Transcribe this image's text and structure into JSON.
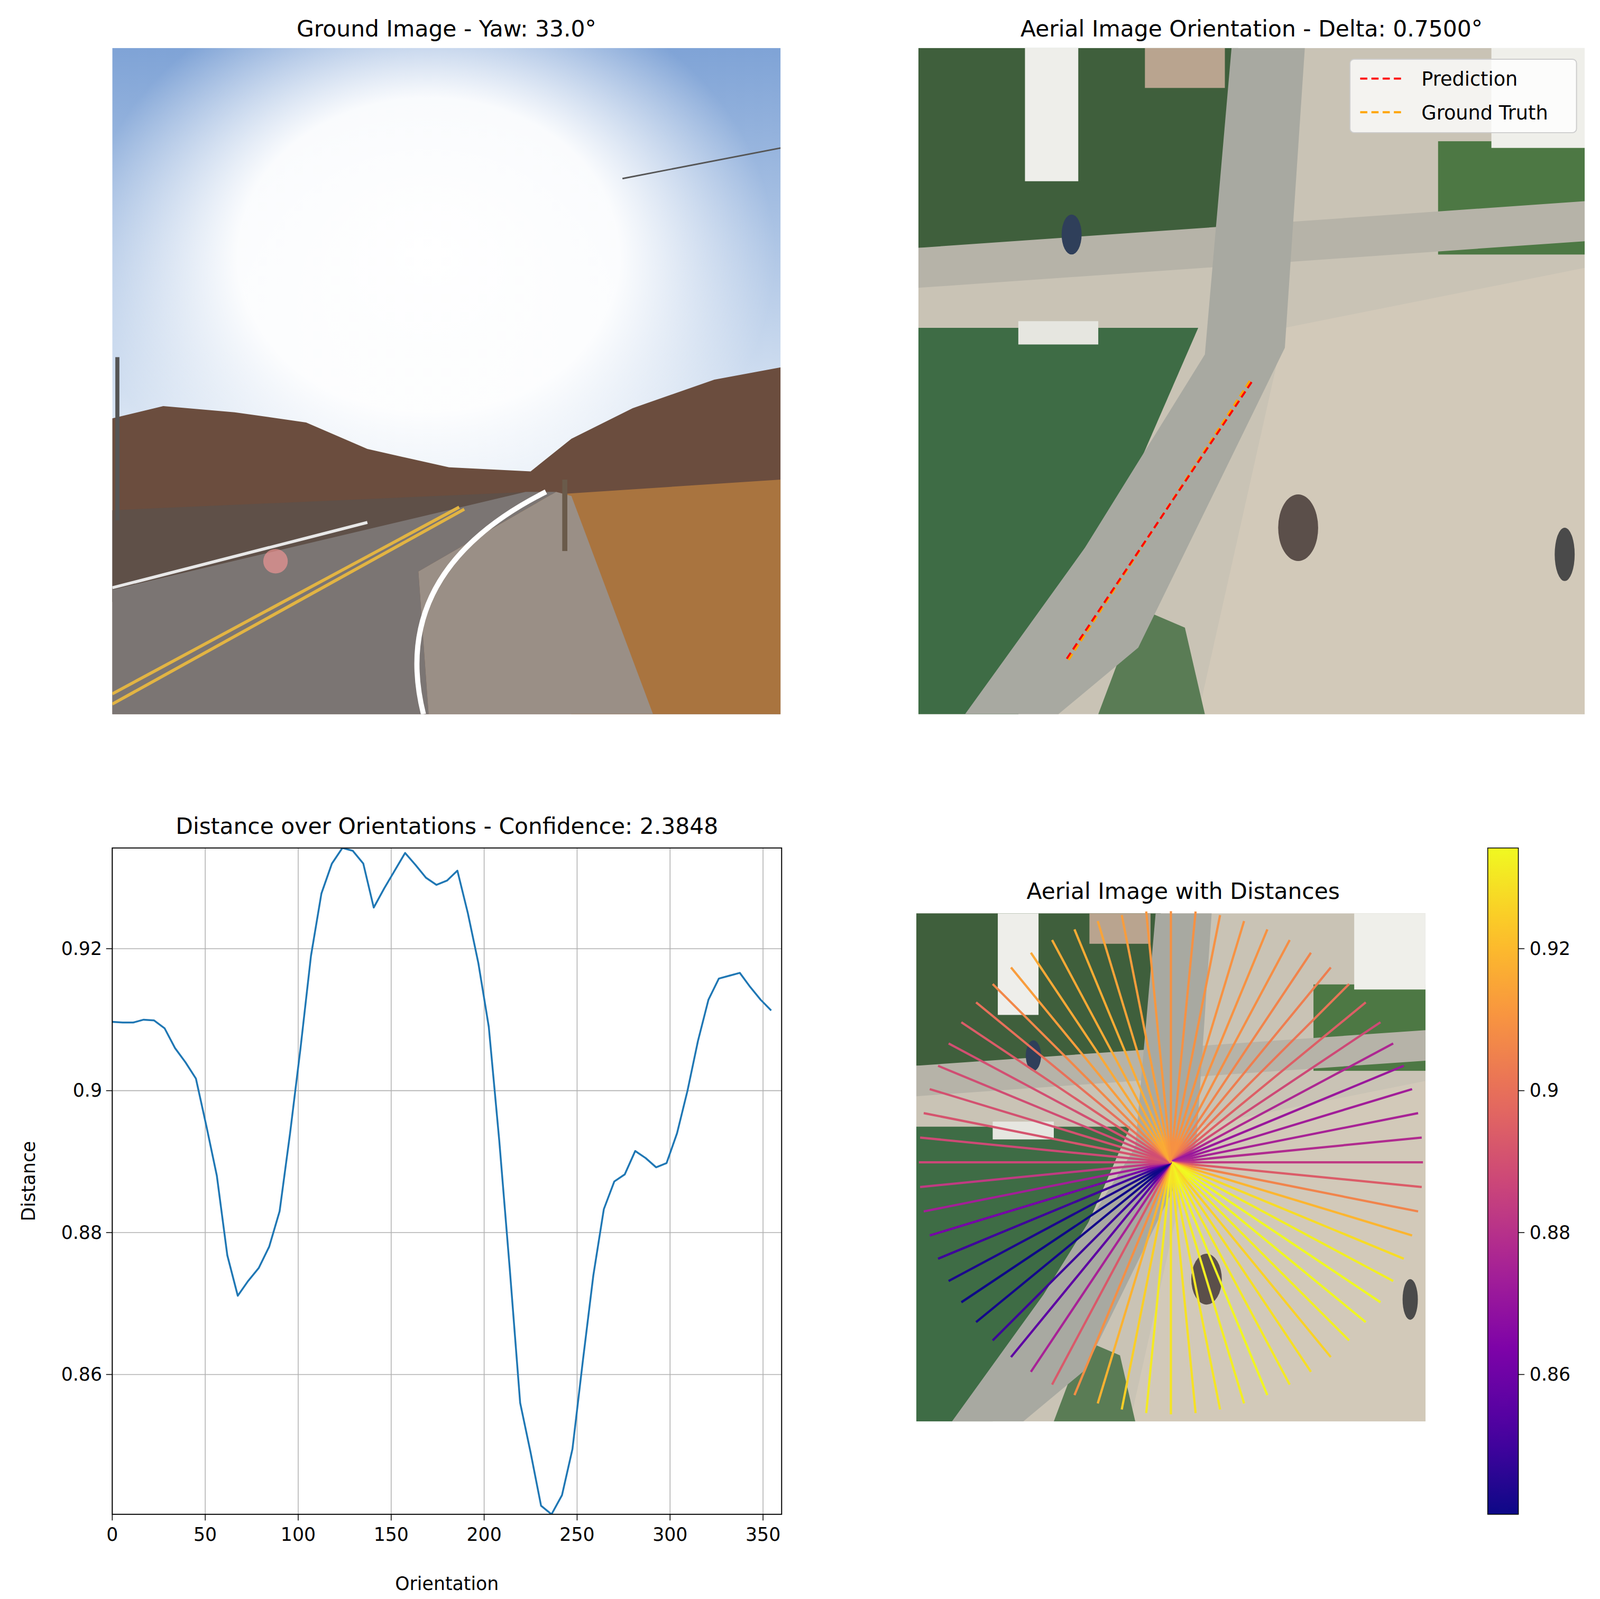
{
  "chart_data": [
    {
      "type": "image",
      "title": "Ground Image - Yaw: 33.0°"
    },
    {
      "type": "orientation",
      "title": "Aerial Image Orientation - Delta: 0.7500°",
      "legend": "upper right",
      "series": [
        {
          "name": "Prediction",
          "color": "#ff0000",
          "line_style": "dashed",
          "values": [
            33.75
          ]
        },
        {
          "name": "Ground Truth",
          "color": "#ffa500",
          "line_style": "dashed",
          "values": [
            33.0
          ]
        }
      ]
    },
    {
      "type": "line",
      "title": "Distance over Orientations - Confidence: 2.3848",
      "x_label": "Orientation",
      "y_label": "Distance",
      "color": "#1f77b4",
      "grid": true,
      "x": [
        0,
        5.625,
        11.25,
        16.875,
        22.5,
        28.125,
        33.75,
        39.375,
        45,
        50.625,
        56.25,
        61.875,
        67.5,
        73.125,
        78.75,
        84.375,
        90,
        95.625,
        101.25,
        106.875,
        112.5,
        118.125,
        123.75,
        129.375,
        135,
        140.625,
        146.25,
        151.875,
        157.5,
        163.125,
        168.75,
        174.375,
        180,
        185.625,
        191.25,
        196.875,
        202.5,
        208.125,
        213.75,
        219.375,
        225,
        230.625,
        236.25,
        241.875,
        247.5,
        253.125,
        258.75,
        264.375,
        270,
        275.625,
        281.25,
        286.875,
        292.5,
        298.125,
        303.75,
        309.375,
        315,
        320.625,
        326.25,
        331.875,
        337.5,
        343.125,
        348.75,
        354.375
      ],
      "values": [
        0.9097,
        0.9096,
        0.9096,
        0.91,
        0.9099,
        0.9088,
        0.906,
        0.904,
        0.9017,
        0.895,
        0.888,
        0.8768,
        0.8711,
        0.8732,
        0.875,
        0.878,
        0.883,
        0.894,
        0.906,
        0.919,
        0.9278,
        0.932,
        0.9342,
        0.9338,
        0.932,
        0.9258,
        0.9285,
        0.931,
        0.9335,
        0.9318,
        0.93,
        0.929,
        0.9296,
        0.931,
        0.925,
        0.918,
        0.909,
        0.893,
        0.875,
        0.856,
        0.849,
        0.8415,
        0.8403,
        0.843,
        0.8495,
        0.862,
        0.874,
        0.8833,
        0.8872,
        0.8882,
        0.8915,
        0.8905,
        0.8892,
        0.8898,
        0.894,
        0.9,
        0.907,
        0.9128,
        0.9158,
        0.9162,
        0.9166,
        0.9146,
        0.9128,
        0.9113
      ],
      "xlim": [
        0,
        360
      ],
      "xticks": [
        0,
        50,
        100,
        150,
        200,
        250,
        300,
        350
      ],
      "ylim": [
        0.8403,
        0.9342
      ],
      "yticks": [
        0.86,
        0.88,
        0.9,
        0.92
      ]
    },
    {
      "type": "polar",
      "title": "Aerial Image with Distances",
      "x": [
        0,
        5.625,
        11.25,
        16.875,
        22.5,
        28.125,
        33.75,
        39.375,
        45,
        50.625,
        56.25,
        61.875,
        67.5,
        73.125,
        78.75,
        84.375,
        90,
        95.625,
        101.25,
        106.875,
        112.5,
        118.125,
        123.75,
        129.375,
        135,
        140.625,
        146.25,
        151.875,
        157.5,
        163.125,
        168.75,
        174.375,
        180,
        185.625,
        191.25,
        196.875,
        202.5,
        208.125,
        213.75,
        219.375,
        225,
        230.625,
        236.25,
        241.875,
        247.5,
        253.125,
        258.75,
        264.375,
        270,
        275.625,
        281.25,
        286.875,
        292.5,
        298.125,
        303.75,
        309.375,
        315,
        320.625,
        326.25,
        331.875,
        337.5,
        343.125,
        348.75,
        354.375
      ],
      "values": [
        0.9097,
        0.9096,
        0.9096,
        0.91,
        0.9099,
        0.9088,
        0.906,
        0.904,
        0.9017,
        0.895,
        0.888,
        0.8768,
        0.8711,
        0.8732,
        0.875,
        0.878,
        0.883,
        0.894,
        0.906,
        0.919,
        0.9278,
        0.932,
        0.9342,
        0.9338,
        0.932,
        0.9258,
        0.9285,
        0.931,
        0.9335,
        0.9318,
        0.93,
        0.929,
        0.9296,
        0.931,
        0.925,
        0.918,
        0.909,
        0.893,
        0.875,
        0.856,
        0.849,
        0.8415,
        0.8403,
        0.843,
        0.8495,
        0.862,
        0.874,
        0.8833,
        0.8872,
        0.8882,
        0.8915,
        0.8905,
        0.8892,
        0.8898,
        0.894,
        0.9,
        0.907,
        0.9128,
        0.9158,
        0.9162,
        0.9166,
        0.9146,
        0.9128,
        0.9113
      ],
      "colorbar_range": [
        0.8403,
        0.9342
      ],
      "colorbar_ticks": [
        0.86,
        0.88,
        0.9,
        0.92
      ]
    }
  ]
}
